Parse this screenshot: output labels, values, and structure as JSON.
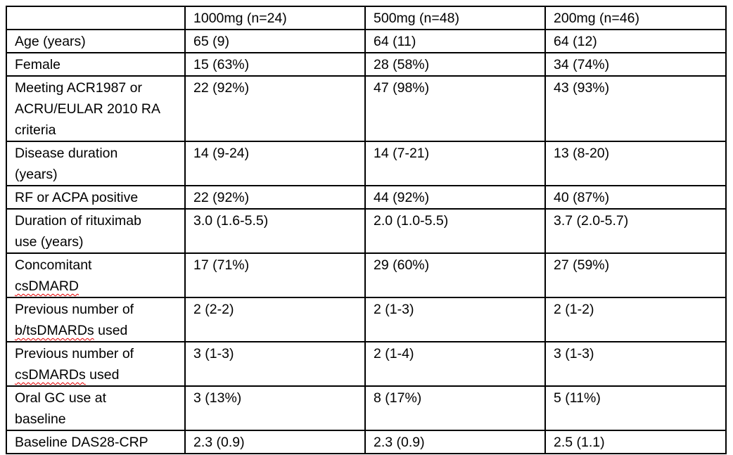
{
  "table": {
    "description": "Baseline characteristics table by rituximab dose group",
    "colors": {
      "border": "#000000",
      "text": "#000000",
      "background": "#ffffff",
      "spellcheck_underline": "#e60000"
    },
    "header": {
      "corner": "",
      "columns": [
        "1000mg (n=24)",
        "500mg (n=48)",
        "200mg (n=46)"
      ]
    },
    "rows": [
      {
        "label": "Age (years)",
        "label_lines": [
          "Age (years)"
        ],
        "misspelled": [],
        "values": [
          "65 (9)",
          "64 (11)",
          "64 (12)"
        ]
      },
      {
        "label": "Female",
        "label_lines": [
          "Female"
        ],
        "misspelled": [],
        "values": [
          "15 (63%)",
          "28 (58%)",
          "34 (74%)"
        ]
      },
      {
        "label": "Meeting ACR1987 or ACRU/EULAR 2010 RA criteria",
        "label_lines": [
          "Meeting ACR1987 or",
          "ACRU/EULAR 2010 RA",
          "criteria"
        ],
        "misspelled": [],
        "values": [
          "22 (92%)",
          "47 (98%)",
          "43 (93%)"
        ]
      },
      {
        "label": "Disease duration (years)",
        "label_lines": [
          "Disease duration",
          "(years)"
        ],
        "misspelled": [],
        "values": [
          "14 (9-24)",
          "14 (7-21)",
          "13 (8-20)"
        ]
      },
      {
        "label": "RF or ACPA positive",
        "label_lines": [
          "RF or ACPA positive"
        ],
        "misspelled": [],
        "values": [
          "22 (92%)",
          "44 (92%)",
          "40 (87%)"
        ]
      },
      {
        "label": "Duration of rituximab use (years)",
        "label_lines": [
          "Duration of rituximab",
          "use (years)"
        ],
        "misspelled": [],
        "values": [
          "3.0 (1.6-5.5)",
          "2.0 (1.0-5.5)",
          "3.7 (2.0-5.7)"
        ]
      },
      {
        "label": "Concomitant csDMARD",
        "label_lines": [
          "Concomitant",
          "csDMARD"
        ],
        "misspelled": [
          "csDMARD"
        ],
        "values": [
          "17 (71%)",
          "29 (60%)",
          "27 (59%)"
        ]
      },
      {
        "label": "Previous number of b/tsDMARDs used",
        "label_lines": [
          "Previous number of",
          "b/tsDMARDs used"
        ],
        "misspelled": [
          "b/tsDMARDs"
        ],
        "values": [
          "2 (2-2)",
          "2 (1-3)",
          "2 (1-2)"
        ]
      },
      {
        "label": "Previous number of csDMARDs used",
        "label_lines": [
          "Previous number of",
          "csDMARDs used"
        ],
        "misspelled": [
          "csDMARDs"
        ],
        "values": [
          "3 (1-3)",
          "2 (1-4)",
          "3 (1-3)"
        ]
      },
      {
        "label": "Oral GC use at baseline",
        "label_lines": [
          "Oral GC use at",
          "baseline"
        ],
        "misspelled": [],
        "values": [
          "3 (13%)",
          "8 (17%)",
          "5 (11%)"
        ]
      },
      {
        "label": "Baseline DAS28-CRP",
        "label_lines": [
          "Baseline DAS28-CRP"
        ],
        "misspelled": [],
        "values": [
          "2.3 (0.9)",
          "2.3 (0.9)",
          "2.5 (1.1)"
        ]
      }
    ]
  }
}
